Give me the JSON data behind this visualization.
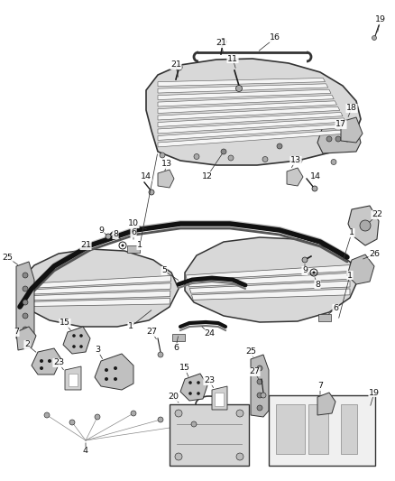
{
  "bg_color": "#ffffff",
  "line_color": "#1a1a1a",
  "label_color": "#000000",
  "panel_face": "#e0e0e0",
  "panel_edge": "#333333",
  "slat_face": "#f5f5f5",
  "slat_edge": "#555555",
  "hardware_face": "#bbbbbb",
  "hardware_edge": "#333333"
}
